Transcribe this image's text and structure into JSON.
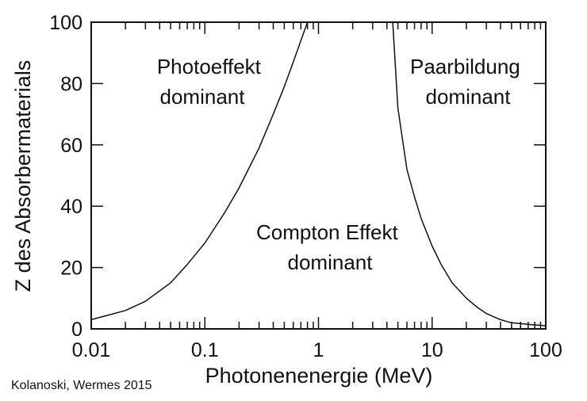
{
  "chart_data": {
    "type": "line",
    "title": "",
    "xlabel": "Photonenenergie (MeV)",
    "ylabel": "Z des Absorbermaterials",
    "xscale": "log",
    "xlim": [
      0.01,
      100
    ],
    "ylim": [
      0,
      100
    ],
    "x_tick_labels": [
      "0.01",
      "0.1",
      "1",
      "10",
      "100"
    ],
    "y_tick_labels": [
      "0",
      "20",
      "40",
      "60",
      "80",
      "100"
    ],
    "grid": false,
    "series": [
      {
        "x": [
          0.01,
          0.02,
          0.03,
          0.05,
          0.07,
          0.1,
          0.15,
          0.2,
          0.3,
          0.4,
          0.5,
          0.6,
          0.7,
          0.8
        ],
        "y": [
          3,
          6,
          9,
          15,
          21,
          28,
          38,
          46,
          59,
          70,
          79,
          87,
          94,
          100
        ]
      },
      {
        "x": [
          4.5,
          5,
          6,
          7,
          8,
          10,
          12,
          15,
          20,
          25,
          30,
          40,
          50,
          70,
          100
        ],
        "y": [
          100,
          72,
          52,
          43,
          36,
          27,
          21,
          15,
          10,
          7,
          5,
          3,
          2,
          1.5,
          1
        ]
      }
    ],
    "annotations": [
      {
        "id": "photo",
        "lines": [
          "Photoeffekt",
          "dominant"
        ]
      },
      {
        "id": "paar",
        "lines": [
          "Paarbildung",
          "dominant"
        ]
      },
      {
        "id": "compton",
        "lines": [
          "Compton Effekt",
          "dominant"
        ]
      }
    ],
    "source_note": "Kolanoski, Wermes 2015"
  }
}
